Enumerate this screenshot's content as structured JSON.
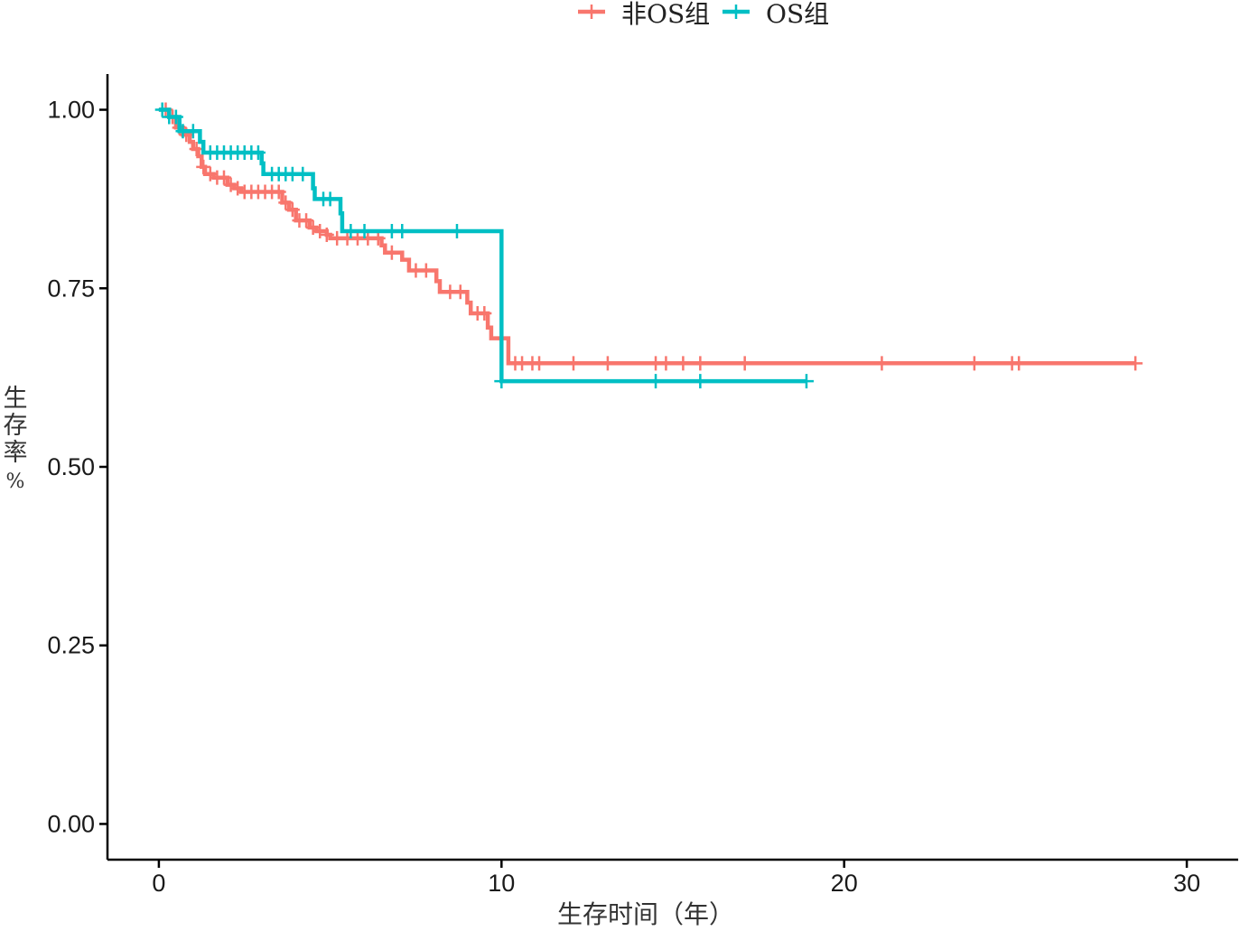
{
  "chart_data": {
    "type": "line",
    "subtype": "kaplan-meier-step",
    "title": "",
    "xlabel": "生存时间（年）",
    "ylabel_chars": [
      "生",
      "存",
      "率",
      "%"
    ],
    "xlim": [
      -1.5,
      31.5
    ],
    "ylim": [
      -0.05,
      1.05
    ],
    "xticks": [
      0,
      10,
      20,
      30
    ],
    "xtick_labels": [
      "0",
      "10",
      "20",
      "30"
    ],
    "yticks": [
      0,
      0.25,
      0.5,
      0.75,
      1.0
    ],
    "ytick_labels": [
      "0.00",
      "0.25",
      "0.50",
      "0.75",
      "1.00"
    ],
    "grid": false,
    "legend_position": "top",
    "series": [
      {
        "name": "非OS组",
        "color": "#F8766D",
        "steps": [
          [
            0,
            1.0
          ],
          [
            0.3,
            0.99
          ],
          [
            0.5,
            0.975
          ],
          [
            0.7,
            0.965
          ],
          [
            0.9,
            0.955
          ],
          [
            1.0,
            0.945
          ],
          [
            1.15,
            0.935
          ],
          [
            1.25,
            0.92
          ],
          [
            1.35,
            0.91
          ],
          [
            1.6,
            0.905
          ],
          [
            2.0,
            0.895
          ],
          [
            2.2,
            0.89
          ],
          [
            2.4,
            0.885
          ],
          [
            3.6,
            0.87
          ],
          [
            3.8,
            0.86
          ],
          [
            4.0,
            0.845
          ],
          [
            4.4,
            0.835
          ],
          [
            4.6,
            0.83
          ],
          [
            4.9,
            0.825
          ],
          [
            5.0,
            0.82
          ],
          [
            6.5,
            0.81
          ],
          [
            6.6,
            0.8
          ],
          [
            7.1,
            0.79
          ],
          [
            7.3,
            0.775
          ],
          [
            8.1,
            0.76
          ],
          [
            8.2,
            0.745
          ],
          [
            9.0,
            0.73
          ],
          [
            9.1,
            0.715
          ],
          [
            9.6,
            0.695
          ],
          [
            9.7,
            0.68
          ],
          [
            10.2,
            0.645
          ],
          [
            28.5,
            0.645
          ]
        ],
        "censor_times": [
          0.2,
          0.4,
          0.6,
          0.8,
          1.1,
          1.3,
          1.5,
          1.7,
          1.9,
          2.1,
          2.3,
          2.5,
          2.7,
          2.9,
          3.1,
          3.3,
          3.5,
          3.7,
          3.9,
          4.1,
          4.3,
          4.5,
          4.7,
          4.9,
          5.2,
          5.5,
          5.8,
          6.1,
          6.4,
          6.8,
          7.5,
          7.8,
          8.5,
          8.8,
          9.3,
          9.5,
          10.4,
          10.6,
          10.9,
          11.1,
          12.1,
          13.1,
          14.5,
          14.8,
          15.3,
          15.8,
          17.1,
          21.1,
          23.8,
          24.9,
          25.1,
          28.5
        ]
      },
      {
        "name": "OS组",
        "color": "#00BFC4",
        "steps": [
          [
            0,
            1.0
          ],
          [
            0.3,
            0.99
          ],
          [
            0.6,
            0.97
          ],
          [
            1.2,
            0.955
          ],
          [
            1.3,
            0.94
          ],
          [
            3.0,
            0.925
          ],
          [
            3.05,
            0.91
          ],
          [
            4.5,
            0.89
          ],
          [
            4.55,
            0.875
          ],
          [
            5.3,
            0.855
          ],
          [
            5.35,
            0.83
          ],
          [
            10.0,
            0.62
          ],
          [
            18.9,
            0.62
          ]
        ],
        "censor_times": [
          0.1,
          0.3,
          0.5,
          0.7,
          1.0,
          1.5,
          1.7,
          1.9,
          2.1,
          2.3,
          2.5,
          2.7,
          2.9,
          3.3,
          3.5,
          3.7,
          3.9,
          4.2,
          4.8,
          5.0,
          5.6,
          6.0,
          6.8,
          7.1,
          8.7,
          10.0,
          14.5,
          15.8,
          18.9
        ]
      }
    ]
  }
}
